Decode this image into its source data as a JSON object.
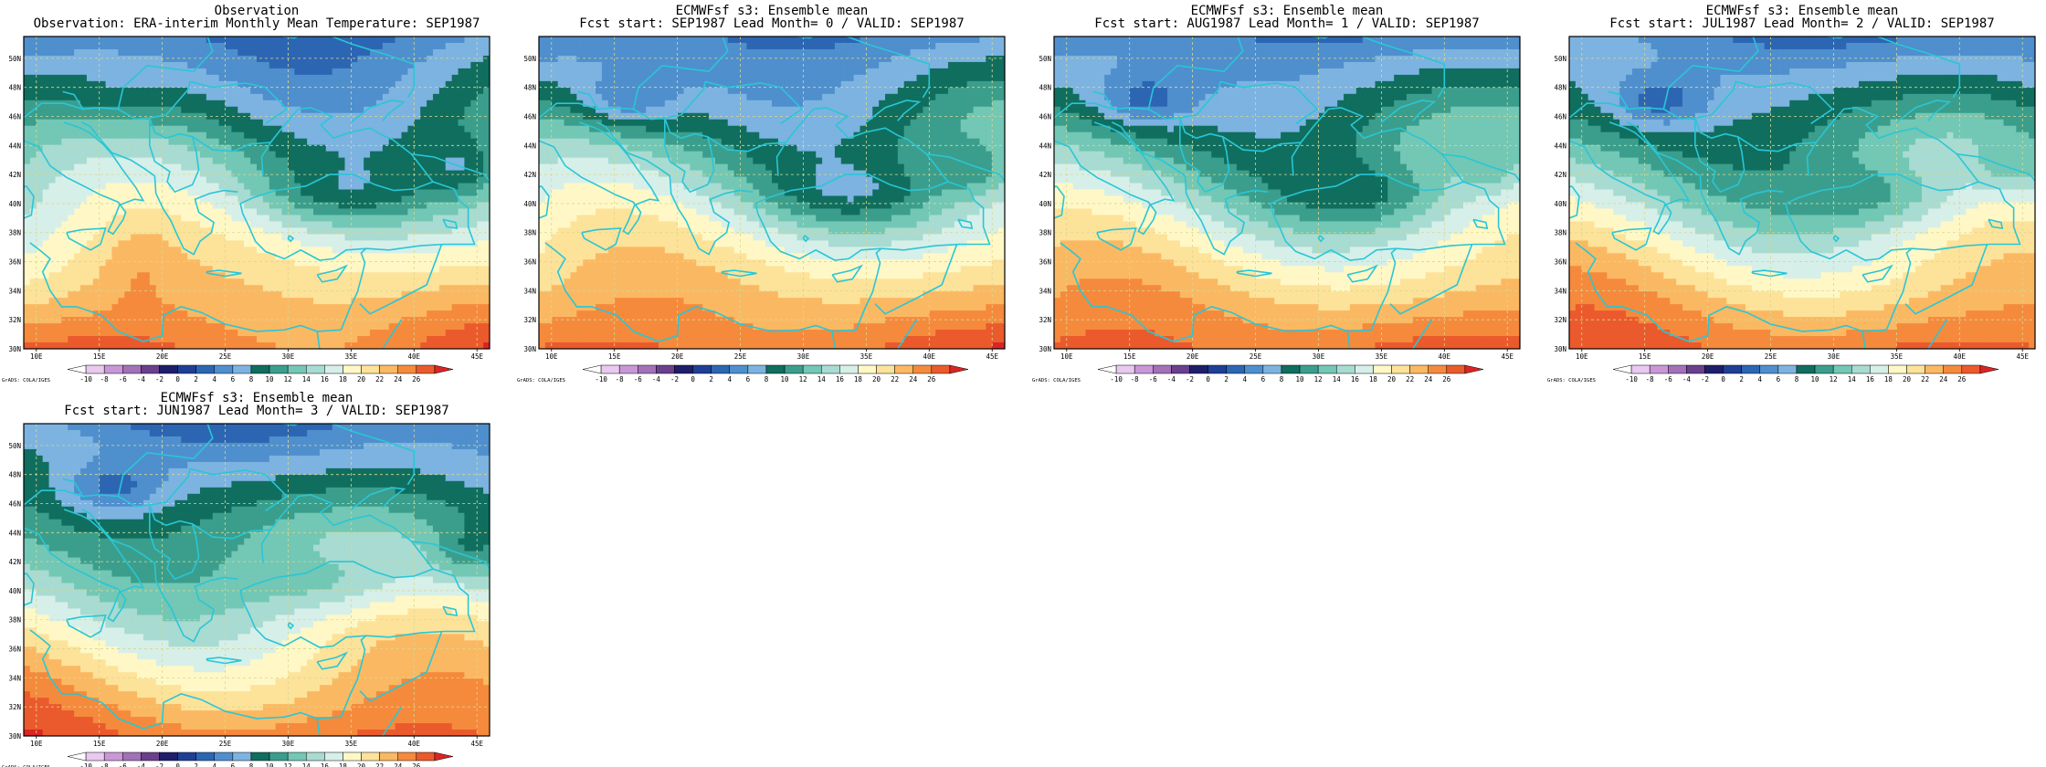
{
  "panels": [
    {
      "title_line1": "Observation",
      "title_line2": "Observation: ERA-interim Monthly Mean Temperature: SEP1987",
      "variant": 0
    },
    {
      "title_line1": "ECMWFsf s3: Ensemble mean",
      "title_line2": "Fcst start: SEP1987  Lead Month= 0 / VALID: SEP1987",
      "variant": 1
    },
    {
      "title_line1": "ECMWFsf s3: Ensemble mean",
      "title_line2": "Fcst start: AUG1987  Lead Month= 1 / VALID: SEP1987",
      "variant": 2
    },
    {
      "title_line1": "ECMWFsf s3: Ensemble mean",
      "title_line2": "Fcst start: JUL1987  Lead Month= 2 / VALID: SEP1987",
      "variant": 3
    },
    {
      "title_line1": "ECMWFsf s3: Ensemble mean",
      "title_line2": "Fcst start: JUN1987  Lead Month= 3 / VALID: SEP1987",
      "variant": 4
    }
  ],
  "map": {
    "lon_ticks": [
      "10E",
      "15E",
      "20E",
      "25E",
      "30E",
      "35E",
      "40E",
      "45E"
    ],
    "lat_ticks": [
      "30N",
      "32N",
      "34N",
      "36N",
      "38N",
      "40N",
      "42N",
      "44N",
      "46N",
      "48N",
      "50N"
    ],
    "lon_range": [
      9,
      46
    ],
    "lat_range": [
      30,
      51.5
    ],
    "coast_color": "#29c6d6",
    "grid_color": "#d8d890"
  },
  "colorbar": {
    "labels": [
      "-10",
      "-8",
      "-6",
      "-4",
      "-2",
      "0",
      "2",
      "4",
      "6",
      "8",
      "10",
      "12",
      "14",
      "16",
      "18",
      "20",
      "22",
      "24",
      "26"
    ],
    "colors": [
      "#ffffff",
      "#e9c9ef",
      "#c997d8",
      "#a371b8",
      "#6a3f8c",
      "#1e1e6b",
      "#1f3f96",
      "#2c66b3",
      "#4f8fcd",
      "#7db3e0",
      "#106e5f",
      "#3b9e8c",
      "#73c7b5",
      "#a8dbd1",
      "#d7efe9",
      "#fff8c6",
      "#fde29a",
      "#fbb862",
      "#f58a3d",
      "#eb5a2c",
      "#dc2424"
    ],
    "credit": "GrADS: COLA/IGES"
  }
}
